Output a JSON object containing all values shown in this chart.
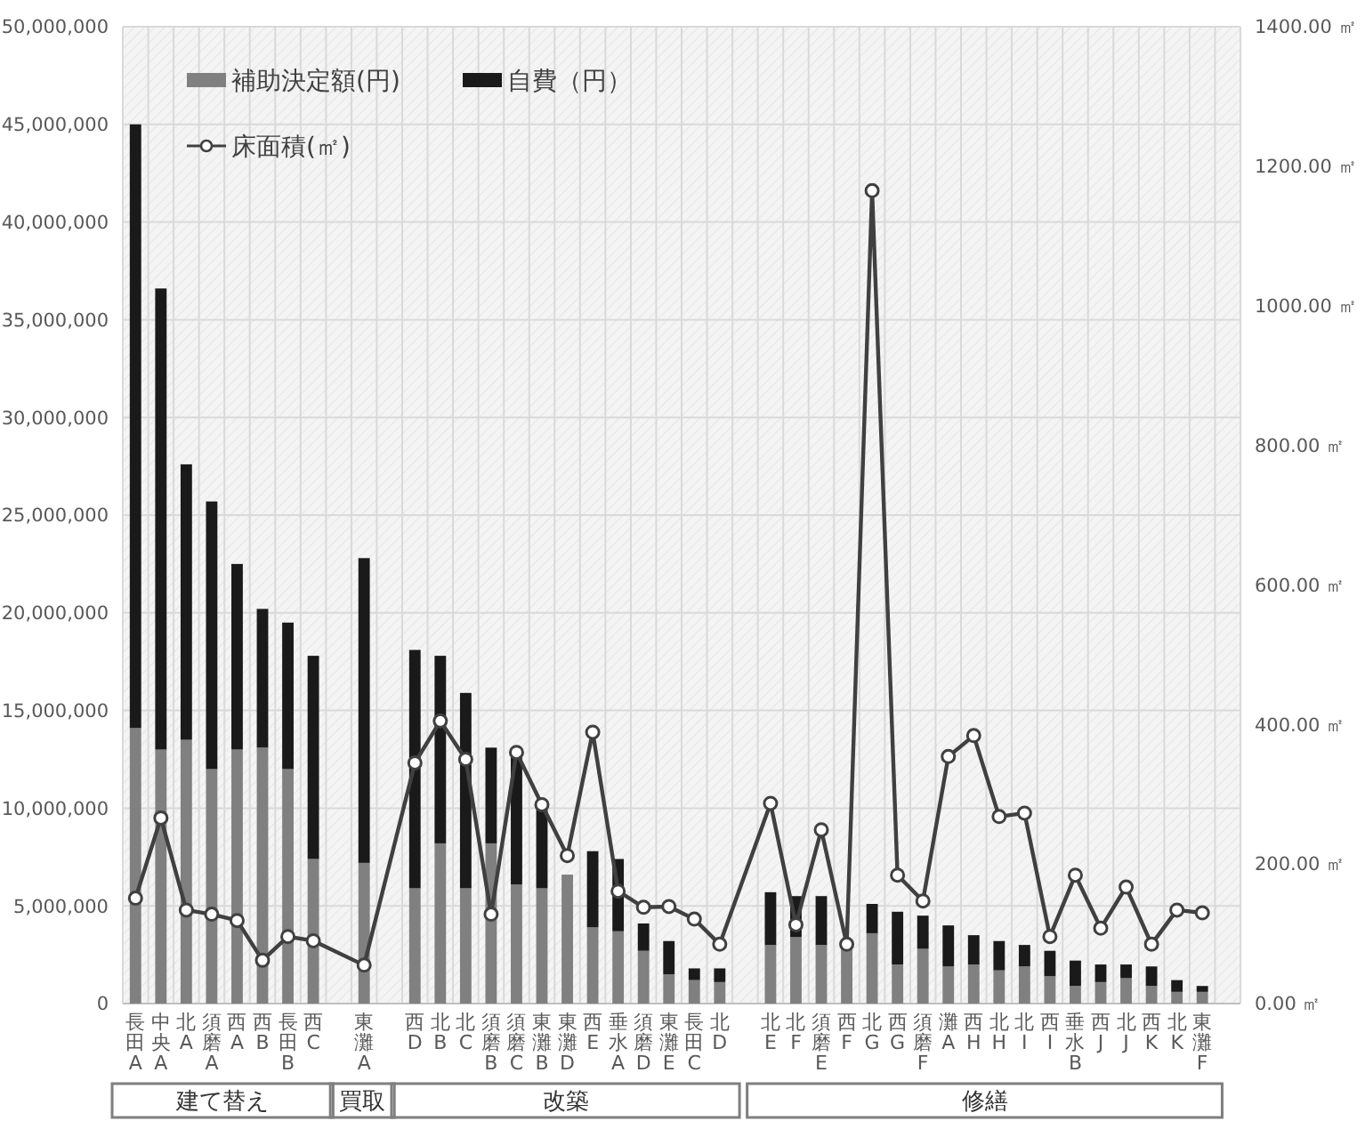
{
  "chart_data": {
    "type": "bar",
    "stacked": true,
    "grid": true,
    "legend": "top left",
    "marker": "circle",
    "categories": [
      "長田A",
      "中央A",
      "北A",
      "須磨A",
      "西A",
      "西B",
      "長田B",
      "西C",
      null,
      "東灘A",
      null,
      "西D",
      "北B",
      "北C",
      "須磨B",
      "須磨C",
      "東灘B",
      "東灘D",
      "西E",
      "垂水A",
      "須磨D",
      "東灘E",
      "長田C",
      "北D",
      null,
      "北E",
      "北F",
      "須磨E",
      "西F",
      "北G",
      "西G",
      "須磨F",
      "灘A",
      "西H",
      "北H",
      "北I",
      "西I",
      "垂水B",
      "西J",
      "北J",
      "西K",
      "北K",
      "東灘F",
      null
    ],
    "series": [
      {
        "name": "補助決定額(円)",
        "color": "#808080",
        "values": [
          14100000,
          13000000,
          13500000,
          12000000,
          13000000,
          13100000,
          12000000,
          7400000,
          null,
          7200000,
          null,
          5900000,
          8200000,
          5900000,
          8200000,
          6100000,
          5900000,
          6600000,
          3900000,
          3700000,
          2700000,
          1500000,
          1200000,
          1100000,
          null,
          3000000,
          3400000,
          3000000,
          3100000,
          3600000,
          2000000,
          2800000,
          1900000,
          2000000,
          1700000,
          1900000,
          1400000,
          900000,
          1100000,
          1300000,
          900000,
          600000,
          600000,
          null
        ]
      },
      {
        "name": "自費（円）",
        "color": "#1a1a1a",
        "values": [
          30900000,
          23600000,
          14100000,
          13700000,
          9500000,
          7100000,
          7500000,
          10400000,
          null,
          15600000,
          null,
          12200000,
          9600000,
          10000000,
          4900000,
          6800000,
          4400000,
          0,
          3900000,
          3700000,
          1400000,
          1700000,
          600000,
          700000,
          null,
          2700000,
          2100000,
          2500000,
          0,
          1500000,
          2700000,
          1700000,
          2100000,
          1500000,
          1500000,
          1100000,
          1300000,
          1300000,
          900000,
          700000,
          1000000,
          600000,
          300000,
          null
        ]
      },
      {
        "name": "床面積(㎡)",
        "type": "line",
        "axis": "y2",
        "color": "#404040",
        "values": [
          151,
          266,
          134,
          128,
          119,
          62,
          96,
          90,
          null,
          55,
          null,
          345,
          405,
          350,
          128,
          360,
          285,
          212,
          389,
          161,
          138,
          139,
          121,
          85,
          null,
          287,
          113,
          249,
          85,
          1165,
          184,
          147,
          354,
          384,
          268,
          273,
          96,
          184,
          108,
          167,
          85,
          134,
          130,
          null
        ]
      }
    ],
    "ylim": [
      0,
      50000000
    ],
    "yticks": [
      {
        "value": 0,
        "label": "0"
      },
      {
        "value": 5000000,
        "label": "5,000,000"
      },
      {
        "value": 10000000,
        "label": "10,000,000"
      },
      {
        "value": 15000000,
        "label": "15,000,000"
      },
      {
        "value": 20000000,
        "label": "20,000,000"
      },
      {
        "value": 25000000,
        "label": "25,000,000"
      },
      {
        "value": 30000000,
        "label": "30,000,000"
      },
      {
        "value": 35000000,
        "label": "35,000,000"
      },
      {
        "value": 40000000,
        "label": "40,000,000"
      },
      {
        "value": 45000000,
        "label": "45,000,000"
      },
      {
        "value": 50000000,
        "label": "50,000,000"
      }
    ],
    "y2lim": [
      0,
      1400
    ],
    "y2ticks": [
      {
        "value": 0,
        "label": "0.00 ㎡"
      },
      {
        "value": 200,
        "label": "200.00 ㎡"
      },
      {
        "value": 400,
        "label": "400.00 ㎡"
      },
      {
        "value": 600,
        "label": "600.00 ㎡"
      },
      {
        "value": 800,
        "label": "800.00 ㎡"
      },
      {
        "value": 1000,
        "label": "1000.00 ㎡"
      },
      {
        "value": 1200,
        "label": "1200.00 ㎡"
      },
      {
        "value": 1400,
        "label": "1400.00 ㎡"
      }
    ],
    "annotations": [
      "建て替え",
      "買取",
      "改築",
      "修繕"
    ]
  }
}
